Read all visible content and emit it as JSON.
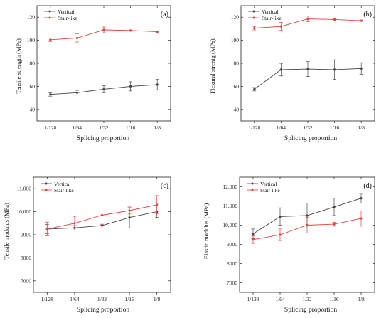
{
  "colors": {
    "vertical": "#444444",
    "stair": "#e8413c"
  },
  "chart_data": [
    {
      "type": "line",
      "panel_label": "(a)",
      "categories": [
        "1/128",
        "1/64",
        "1/32",
        "1/16",
        "1/8"
      ],
      "xlabel": "Splicing proportion",
      "ylabel": "Tensile strength (MPa)",
      "ylim": [
        30,
        130
      ],
      "yticks": [
        "40",
        "60",
        "80",
        "100",
        "120"
      ],
      "ytick_values": [
        40,
        60,
        80,
        100,
        120
      ],
      "legend_position": "top-left",
      "series": [
        {
          "name": "Vertical",
          "values": [
            53,
            54.5,
            57.5,
            60,
            61.5
          ],
          "errors": [
            1.5,
            2,
            3,
            4,
            4.5
          ]
        },
        {
          "name": "Stair-like",
          "values": [
            100.5,
            102,
            109,
            108.5,
            107.5
          ],
          "errors": [
            1.5,
            3.5,
            2.5,
            0.5,
            0.5
          ]
        }
      ]
    },
    {
      "type": "line",
      "panel_label": "(b)",
      "categories": [
        "1/128",
        "1/64",
        "1/32",
        "1/16",
        "1/8"
      ],
      "xlabel": "Splicing proportion",
      "ylabel": "Flexural strentg (MPa)",
      "ylim": [
        30,
        130
      ],
      "yticks": [
        "40",
        "60",
        "80",
        "100",
        "120"
      ],
      "ytick_values": [
        40,
        60,
        80,
        100,
        120
      ],
      "legend_position": "top-left",
      "series": [
        {
          "name": "Vertical",
          "values": [
            57.5,
            74.5,
            75,
            74.5,
            75.5
          ],
          "errors": [
            1.5,
            5.5,
            6.5,
            8.5,
            5
          ]
        },
        {
          "name": "Stair-like",
          "values": [
            110.5,
            112,
            118.5,
            118,
            117
          ],
          "errors": [
            1.5,
            3.5,
            2.5,
            0.5,
            0.5
          ]
        }
      ]
    },
    {
      "type": "line",
      "panel_label": "(c)",
      "categories": [
        "1/128",
        "1/64",
        "1/32",
        "1/16",
        "1/8"
      ],
      "xlabel": "Splicing proportion",
      "ylabel": "Tensile modulus (MPa)",
      "ylim": [
        6500,
        11500
      ],
      "yticks": [
        "7000",
        "8000",
        "9000",
        "10,000",
        "11,000"
      ],
      "ytick_values": [
        7000,
        8000,
        9000,
        10000,
        11000
      ],
      "legend_position": "top-left",
      "series": [
        {
          "name": "Vertical",
          "values": [
            9250,
            9300,
            9400,
            9750,
            10000
          ],
          "errors": [
            200,
            100,
            100,
            450,
            250
          ]
        },
        {
          "name": "Stair-like",
          "values": [
            9250,
            9500,
            9850,
            10050,
            10300
          ],
          "errors": [
            300,
            300,
            400,
            150,
            400
          ]
        }
      ]
    },
    {
      "type": "line",
      "panel_label": "(d)",
      "categories": [
        "1/128",
        "1/64",
        "1/32",
        "1/16",
        "1/8"
      ],
      "xlabel": "Splicing proportion",
      "ylabel": "Elastic modulus (MPa)",
      "ylim": [
        6500,
        12500
      ],
      "yticks": [
        "7000",
        "8000",
        "9000",
        "10,000",
        "11,000",
        "12,000"
      ],
      "ytick_values": [
        7000,
        8000,
        9000,
        10000,
        11000,
        12000
      ],
      "legend_position": "top-left",
      "series": [
        {
          "name": "Vertical",
          "values": [
            9550,
            10450,
            10500,
            10950,
            11400
          ],
          "errors": [
            250,
            450,
            650,
            450,
            250
          ]
        },
        {
          "name": "Stair-like",
          "values": [
            9250,
            9500,
            10000,
            10050,
            10350
          ],
          "errors": [
            200,
            300,
            400,
            100,
            400
          ]
        }
      ]
    }
  ]
}
